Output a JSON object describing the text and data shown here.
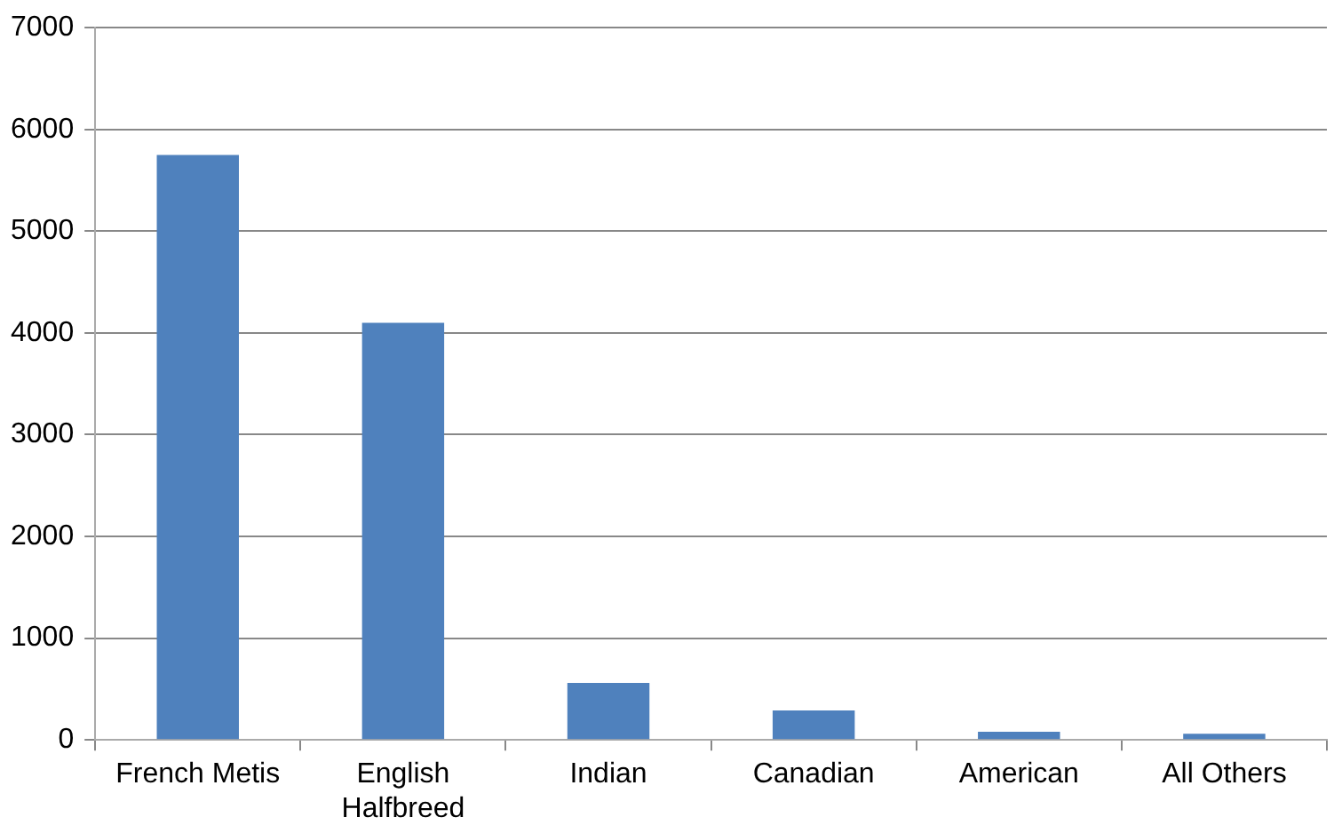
{
  "chart_data": {
    "type": "bar",
    "categories": [
      "French Metis",
      "English Halfbreed",
      "Indian",
      "Canadian",
      "American",
      "All Others"
    ],
    "values": [
      5750,
      4100,
      560,
      290,
      80,
      60
    ],
    "color": "#4f81bd",
    "ylim": [
      0,
      7000
    ],
    "yticks": [
      0,
      1000,
      2000,
      3000,
      4000,
      5000,
      6000,
      7000
    ],
    "grid": "y",
    "legend": false
  }
}
